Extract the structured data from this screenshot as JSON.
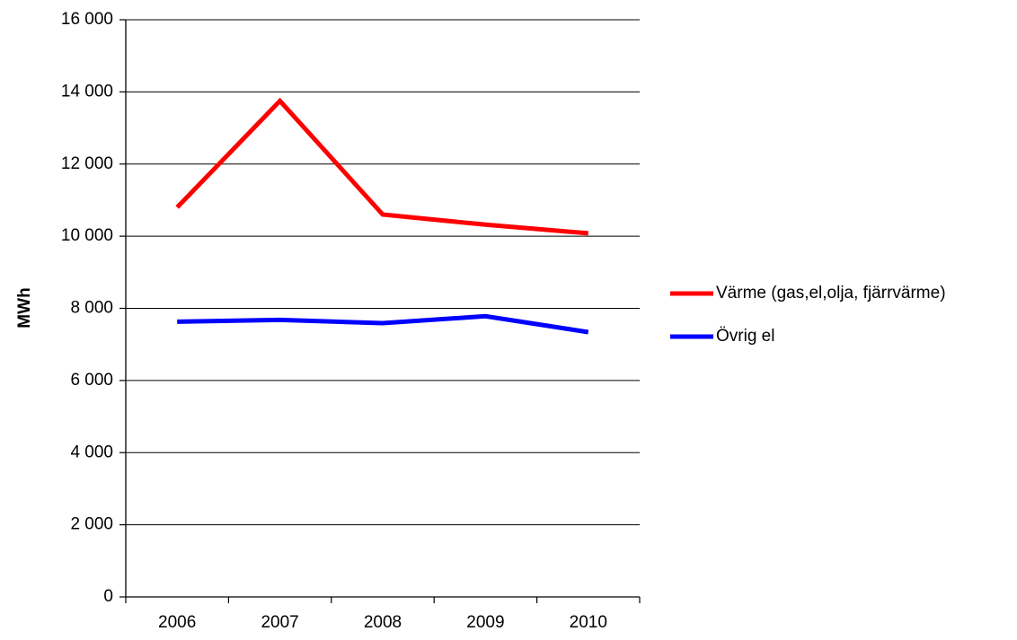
{
  "chart_data": {
    "type": "line",
    "title": "",
    "xlabel": "",
    "ylabel": "MWh",
    "categories": [
      "2006",
      "2007",
      "2008",
      "2009",
      "2010"
    ],
    "ylim": [
      0,
      16000
    ],
    "yticks": [
      0,
      2000,
      4000,
      6000,
      8000,
      10000,
      12000,
      14000,
      16000
    ],
    "ytick_labels": [
      "0",
      "2 000",
      "4 000",
      "6 000",
      "8 000",
      "10 000",
      "12 000",
      "14 000",
      "16 000"
    ],
    "grid": true,
    "legend_position": "right",
    "series": [
      {
        "name": "Värme (gas,el,olja, fjärrvärme)",
        "color": "#ff0000",
        "values": [
          10800,
          13750,
          10600,
          10320,
          10080
        ]
      },
      {
        "name": "Övrig el",
        "color": "#0000ff",
        "values": [
          7630,
          7680,
          7590,
          7780,
          7340
        ]
      }
    ]
  }
}
